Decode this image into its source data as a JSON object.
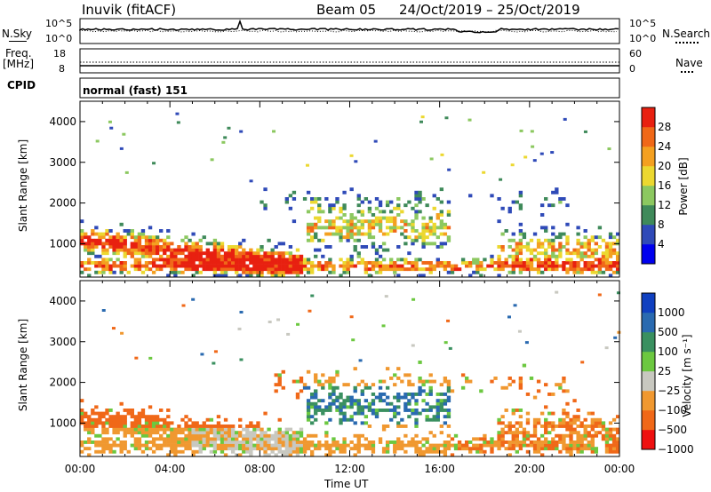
{
  "header": {
    "station": "Inuvik (fitACF)",
    "beam": "Beam 05",
    "date_range": "24/Oct/2019 – 25/Oct/2019"
  },
  "panels": {
    "nsky": {
      "label": "N.Sky",
      "left_top": "10^5",
      "left_bottom": "10^0",
      "right_top": "10^5",
      "right_bottom": "10^0",
      "right_label": "N.Search"
    },
    "freq": {
      "label_line1": "Freq.",
      "label_line2": "[MHz]",
      "left_top": "18",
      "left_bottom": "8",
      "right_top": "60",
      "right_bottom": "0",
      "right_label": "Nave"
    },
    "cpid": {
      "label": "CPID",
      "value": "normal (fast) 151"
    }
  },
  "colorbars": {
    "power": {
      "title": "Power [dB]",
      "ticks": [
        "28",
        "24",
        "20",
        "16",
        "12",
        "8",
        "4"
      ]
    },
    "velocity": {
      "title": "Velocity [m s⁻¹]",
      "ticks": [
        "1000",
        "500",
        "100",
        "25",
        "−25",
        "−100",
        "−500",
        "−1000"
      ]
    }
  },
  "colors": {
    "power": [
      "#0000ee",
      "#2f4ab8",
      "#3f8a5a",
      "#8cc860",
      "#ecd830",
      "#f4a020",
      "#f06818",
      "#e82010"
    ],
    "velocity": [
      "#ee1010",
      "#f06818",
      "#f09830",
      "#c8c8c0",
      "#6cc840",
      "#3a9060",
      "#2a6ab0",
      "#1040c0"
    ]
  },
  "chart_data": [
    {
      "type": "heatmap",
      "title": "Power",
      "ylabel": "Slant Range [km]",
      "xlabel": "",
      "x_ticks": [
        "00:00",
        "04:00",
        "08:00",
        "12:00",
        "16:00",
        "20:00",
        "00:00"
      ],
      "y_ticks": [
        1000,
        2000,
        3000,
        4000
      ],
      "xlim_hours": [
        0,
        24
      ],
      "ylim_km": [
        180,
        4500
      ],
      "colorbar": "Power [dB]"
    },
    {
      "type": "heatmap",
      "title": "Velocity",
      "ylabel": "Slant Range [km]",
      "xlabel": "Time UT",
      "x_ticks": [
        "00:00",
        "04:00",
        "08:00",
        "12:00",
        "16:00",
        "20:00",
        "00:00"
      ],
      "y_ticks": [
        1000,
        2000,
        3000,
        4000
      ],
      "xlim_hours": [
        0,
        24
      ],
      "ylim_km": [
        180,
        4500
      ],
      "colorbar": "Velocity [m s⁻¹]"
    }
  ],
  "axis": {
    "xlabel": "Time UT"
  }
}
